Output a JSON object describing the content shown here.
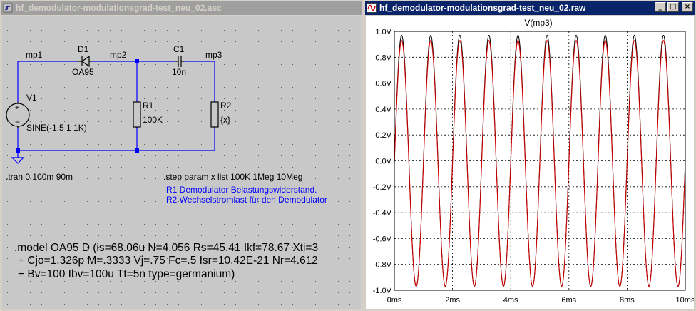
{
  "schematic_window": {
    "title": "hf_demodulator-modulationsgrad-test_neu_02.asc",
    "nets": {
      "mp1": "mp1",
      "mp2": "mp2",
      "mp3": "mp3"
    },
    "components": {
      "d1": {
        "name": "D1",
        "value": "OA95"
      },
      "c1": {
        "name": "C1",
        "value": "10n"
      },
      "r1": {
        "name": "R1",
        "value": "100K"
      },
      "r2": {
        "name": "R2",
        "value": "{x}"
      },
      "v1": {
        "name": "V1",
        "value": "SINE(-1.5 1 1K)"
      }
    },
    "directives": {
      "tran": ".tran 0 100m 90m",
      "step": ".step param x list 100K 1Meg 10Meg",
      "comment_1": "R1 Demodulator Belastungswiderstand.",
      "comment_2": "R2 Wechselstromlast für den Demodulator",
      "model_1": ".model OA95 D (is=68.06u N=4.056 Rs=45.41 Ikf=78.67 Xti=3",
      "model_2": "+ Cjo=1.326p M=.3333 Vj=.75 Fc=.5 Isr=10.42E-21 Nr=4.612",
      "model_3": "+ Bv=100 Ibv=100u Tt=5n type=germanium)"
    },
    "colors": {
      "wire": "#0000ff",
      "background": "#c8c8c8",
      "comment": "#0000ff",
      "component": "#000000"
    }
  },
  "waveform_window": {
    "title": "hf_demodulator-modulationsgrad-test_neu_02.raw",
    "buttons": {
      "minimize": "_",
      "maximize": "□",
      "close": "×"
    },
    "chart_data": {
      "type": "line",
      "title": "V(mp3)",
      "xlabel": "",
      "ylabel": "",
      "x_unit": "ms",
      "y_unit": "V",
      "xlim": [
        0,
        10
      ],
      "ylim": [
        -1.0,
        1.0
      ],
      "x_ticks": [
        "0ms",
        "2ms",
        "4ms",
        "6ms",
        "8ms",
        "10ms"
      ],
      "y_ticks": [
        "1.0V",
        "0.8V",
        "0.6V",
        "0.4V",
        "0.2V",
        "0.0V",
        "-0.2V",
        "-0.4V",
        "-0.6V",
        "-0.8V",
        "-1.0V"
      ],
      "grid": true,
      "series": [
        {
          "color": "#000000",
          "function": "sine",
          "amplitude": 0.97,
          "offset": 0.0,
          "frequency_khz": 1.0
        },
        {
          "color": "#cc0000",
          "function": "sine",
          "amplitude": 0.95,
          "offset": -0.02,
          "frequency_khz": 1.0
        }
      ]
    }
  }
}
